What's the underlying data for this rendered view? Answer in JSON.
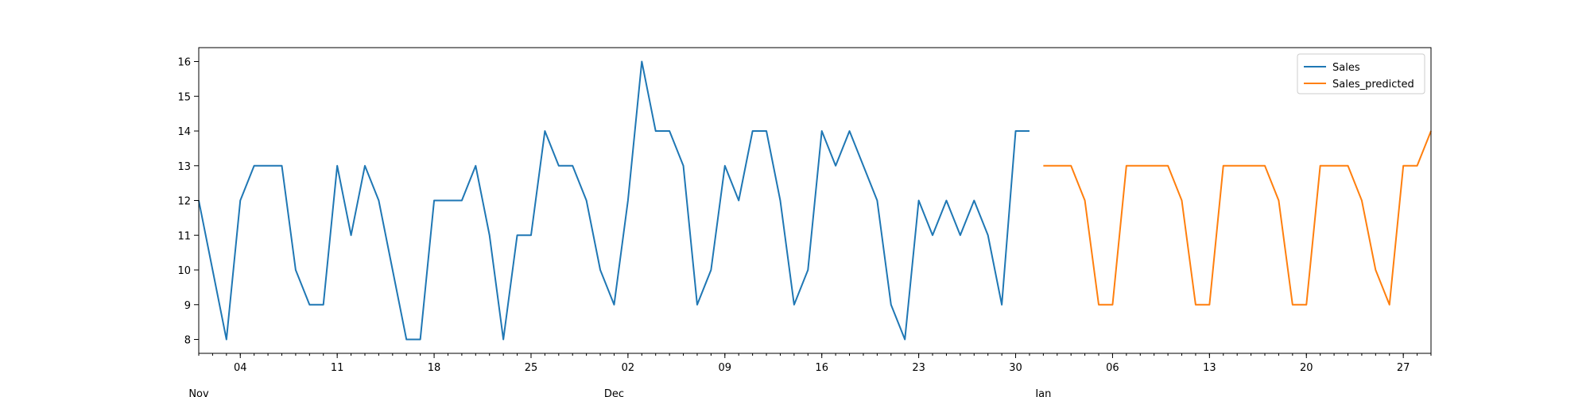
{
  "chart_data": {
    "type": "line",
    "x_axis": {
      "type": "date",
      "range": [
        "2023-11-01",
        "2024-01-29"
      ],
      "major_ticks": [
        {
          "date": "2023-11-04",
          "label": "04"
        },
        {
          "date": "2023-11-11",
          "label": "11"
        },
        {
          "date": "2023-11-18",
          "label": "18"
        },
        {
          "date": "2023-11-25",
          "label": "25"
        },
        {
          "date": "2023-12-02",
          "label": "02"
        },
        {
          "date": "2023-12-09",
          "label": "09"
        },
        {
          "date": "2023-12-16",
          "label": "16"
        },
        {
          "date": "2023-12-23",
          "label": "23"
        },
        {
          "date": "2023-12-30",
          "label": "30"
        },
        {
          "date": "2024-01-06",
          "label": "06"
        },
        {
          "date": "2024-01-13",
          "label": "13"
        },
        {
          "date": "2024-01-20",
          "label": "20"
        },
        {
          "date": "2024-01-27",
          "label": "27"
        }
      ],
      "month_labels": [
        {
          "date": "2023-11-01",
          "label": "Nov"
        },
        {
          "date": "2023-12-01",
          "label": "Dec"
        },
        {
          "date": "2024-01-01",
          "label": "Jan"
        }
      ]
    },
    "y_axis": {
      "range": [
        7.6,
        16.4
      ],
      "ticks": [
        8,
        9,
        10,
        11,
        12,
        13,
        14,
        15,
        16
      ]
    },
    "grid": false,
    "legend": {
      "position": "top-right"
    },
    "series": [
      {
        "name": "Sales",
        "color": "#1f77b4",
        "x": [
          "2023-11-01",
          "2023-11-02",
          "2023-11-03",
          "2023-11-04",
          "2023-11-05",
          "2023-11-06",
          "2023-11-07",
          "2023-11-08",
          "2023-11-09",
          "2023-11-10",
          "2023-11-11",
          "2023-11-12",
          "2023-11-13",
          "2023-11-14",
          "2023-11-15",
          "2023-11-16",
          "2023-11-17",
          "2023-11-18",
          "2023-11-19",
          "2023-11-20",
          "2023-11-21",
          "2023-11-22",
          "2023-11-23",
          "2023-11-24",
          "2023-11-25",
          "2023-11-26",
          "2023-11-27",
          "2023-11-28",
          "2023-11-29",
          "2023-11-30",
          "2023-12-01",
          "2023-12-02",
          "2023-12-03",
          "2023-12-04",
          "2023-12-05",
          "2023-12-06",
          "2023-12-07",
          "2023-12-08",
          "2023-12-09",
          "2023-12-10",
          "2023-12-11",
          "2023-12-12",
          "2023-12-13",
          "2023-12-14",
          "2023-12-15",
          "2023-12-16",
          "2023-12-17",
          "2023-12-18",
          "2023-12-19",
          "2023-12-20",
          "2023-12-21",
          "2023-12-22",
          "2023-12-23",
          "2023-12-24",
          "2023-12-25",
          "2023-12-26",
          "2023-12-27",
          "2023-12-28",
          "2023-12-29",
          "2023-12-30",
          "2023-12-31"
        ],
        "values": [
          12,
          10,
          8,
          12,
          13,
          13,
          13,
          10,
          9,
          9,
          13,
          11,
          13,
          12,
          10,
          8,
          8,
          12,
          12,
          12,
          13,
          11,
          8,
          11,
          11,
          14,
          13,
          13,
          12,
          10,
          9,
          12,
          16,
          14,
          14,
          13,
          9,
          10,
          13,
          12,
          14,
          14,
          12,
          9,
          10,
          14,
          13,
          14,
          13,
          12,
          9,
          8,
          12,
          11,
          12,
          11,
          12,
          11,
          9,
          14,
          14
        ]
      },
      {
        "name": "Sales_predicted",
        "color": "#ff7f0e",
        "x": [
          "2024-01-01",
          "2024-01-02",
          "2024-01-03",
          "2024-01-04",
          "2024-01-05",
          "2024-01-06",
          "2024-01-07",
          "2024-01-08",
          "2024-01-09",
          "2024-01-10",
          "2024-01-11",
          "2024-01-12",
          "2024-01-13",
          "2024-01-14",
          "2024-01-15",
          "2024-01-16",
          "2024-01-17",
          "2024-01-18",
          "2024-01-19",
          "2024-01-20",
          "2024-01-21",
          "2024-01-22",
          "2024-01-23",
          "2024-01-24",
          "2024-01-25",
          "2024-01-26",
          "2024-01-27",
          "2024-01-28",
          "2024-01-29"
        ],
        "values": [
          13,
          13,
          13,
          12,
          9,
          9,
          13,
          13,
          13,
          13,
          12,
          9,
          9,
          13,
          13,
          13,
          13,
          12,
          9,
          9,
          13,
          13,
          13,
          12,
          10,
          9,
          13,
          13,
          14
        ]
      }
    ]
  }
}
